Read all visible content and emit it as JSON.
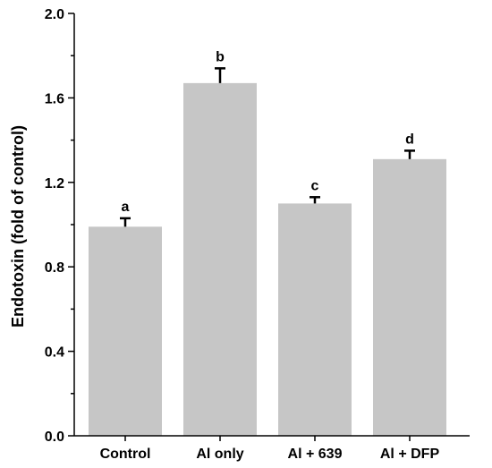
{
  "chart_data": {
    "type": "bar",
    "title": "",
    "xlabel": "",
    "ylabel": "Endotoxin (fold of control)",
    "categories": [
      "Control",
      "Al only",
      "Al + 639",
      "Al + DFP"
    ],
    "values": [
      0.99,
      1.67,
      1.1,
      1.31
    ],
    "errors": [
      0.04,
      0.07,
      0.03,
      0.04
    ],
    "significance_labels": [
      "a",
      "b",
      "c",
      "d"
    ],
    "ylim": [
      0.0,
      2.0
    ],
    "yticks": [
      0.0,
      0.4,
      0.8,
      1.2,
      1.6,
      2.0
    ],
    "ytick_labels": [
      "0.0",
      "0.4",
      "0.8",
      "1.2",
      "1.6",
      "2.0"
    ],
    "bar_color": "#c6c6c6",
    "grid": false,
    "legend": "none"
  }
}
